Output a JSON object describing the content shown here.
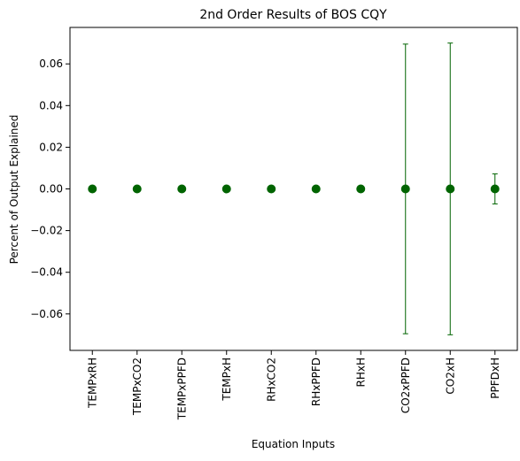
{
  "chart_data": {
    "type": "scatter",
    "title": "2nd Order Results of BOS CQY",
    "xlabel": "Equation Inputs",
    "ylabel": "Percent of Output Explained",
    "categories": [
      "TEMPxRH",
      "TEMPxCO2",
      "TEMPxPPFD",
      "TEMPxH",
      "RHxCO2",
      "RHxPPFD",
      "RHxH",
      "CO2xPPFD",
      "CO2xH",
      "PPFDxH"
    ],
    "values": [
      0,
      0,
      0,
      0,
      0,
      0,
      0,
      0,
      0,
      0
    ],
    "error": [
      0,
      0,
      0,
      0,
      0,
      0,
      0,
      0.0695,
      0.07,
      0.0072
    ],
    "ylim": [
      -0.0775,
      0.0775
    ],
    "yticks": [
      -0.06,
      -0.04,
      -0.02,
      0.0,
      0.02,
      0.04,
      0.06
    ],
    "ytick_labels": [
      "−0.06",
      "−0.04",
      "−0.02",
      "0.00",
      "0.02",
      "0.04",
      "0.06"
    ],
    "grid": false,
    "marker_color": "#006400",
    "errorbar_color": "#006400"
  }
}
